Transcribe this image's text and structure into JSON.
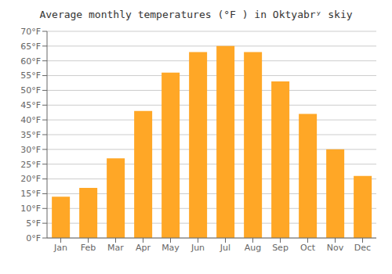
{
  "chart_data": {
    "type": "bar",
    "title": "Average monthly temperatures (°F ) in Oktyabrʸ skiy",
    "categories": [
      "Jan",
      "Feb",
      "Mar",
      "Apr",
      "May",
      "Jun",
      "Jul",
      "Aug",
      "Sep",
      "Oct",
      "Nov",
      "Dec"
    ],
    "values": [
      14,
      17,
      27,
      43,
      56,
      63,
      65,
      63,
      53,
      42,
      30,
      21
    ],
    "color": "#FFA726",
    "ylim": [
      0,
      70
    ],
    "yticks": [
      {
        "value": 0,
        "label": "0°F"
      },
      {
        "value": 5,
        "label": "5°F"
      },
      {
        "value": 10,
        "label": "10°F"
      },
      {
        "value": 15,
        "label": "15°F"
      },
      {
        "value": 20,
        "label": "20°F"
      },
      {
        "value": 25,
        "label": "25°F"
      },
      {
        "value": 30,
        "label": "30°F"
      },
      {
        "value": 35,
        "label": "35°F"
      },
      {
        "value": 40,
        "label": "40°F"
      },
      {
        "value": 45,
        "label": "45°F"
      },
      {
        "value": 50,
        "label": "50°F"
      },
      {
        "value": 55,
        "label": "55°F"
      },
      {
        "value": 60,
        "label": "60°F"
      },
      {
        "value": 65,
        "label": "65°F"
      },
      {
        "value": 70,
        "label": "70°F"
      }
    ],
    "grid": true
  }
}
